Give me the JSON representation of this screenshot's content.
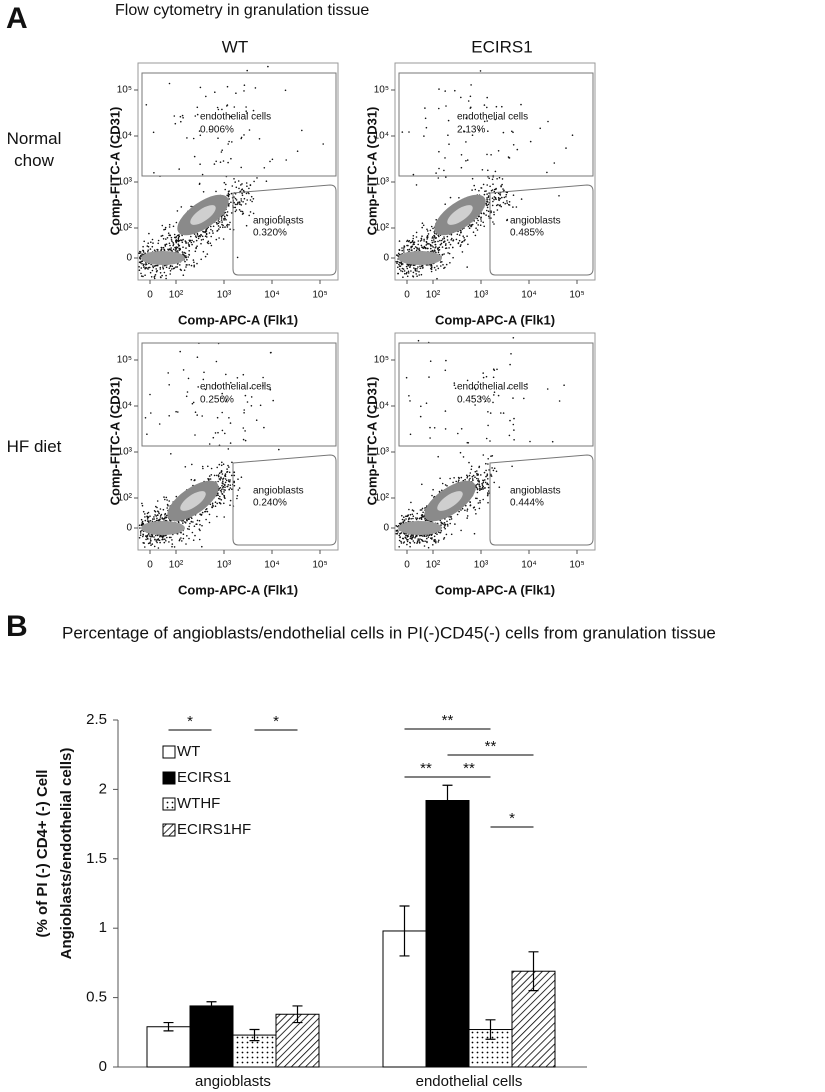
{
  "panel_a": {
    "label": "A",
    "title": "Flow cytometry in granulation tissue",
    "columns": [
      "WT",
      "ECIRS1"
    ],
    "rows": [
      "Normal chow",
      "HF diet"
    ],
    "x_label": "Comp-APC-A (Flk1)",
    "y_label": "Comp-FITC-A (CD31)",
    "xticks": [
      0,
      {
        "value": 100,
        "label": "10²"
      },
      {
        "value": 1000,
        "label": "10³"
      },
      {
        "value": 10000,
        "label": "10⁴"
      },
      {
        "value": 100000,
        "label": "10⁵"
      }
    ],
    "yticks": [
      0,
      {
        "value": 100,
        "label": "10²"
      },
      {
        "value": 1000,
        "label": "10³"
      },
      {
        "value": 10000,
        "label": "10⁴"
      },
      {
        "value": 100000,
        "label": "10⁵"
      }
    ],
    "plots": [
      {
        "gates": [
          {
            "name": "endothelial cells",
            "value": "0.906%"
          },
          {
            "name": "angioblasts",
            "value": "0.320%"
          }
        ]
      },
      {
        "gates": [
          {
            "name": "endothelial cells",
            "value": "2.13%"
          },
          {
            "name": "angioblasts",
            "value": "0.485%"
          }
        ]
      },
      {
        "gates": [
          {
            "name": "endothelial cells",
            "value": "0.250%"
          },
          {
            "name": "angioblasts",
            "value": "0.240%"
          }
        ]
      },
      {
        "gates": [
          {
            "name": "endothelial cells",
            "value": "0.453%"
          },
          {
            "name": "angioblasts",
            "value": "0.444%"
          }
        ]
      }
    ]
  },
  "chart_data": {
    "type": "bar",
    "label": "B",
    "title": "Percentage of angioblasts/endothelial cells in PI(-)CD45(-) cells from granulation tissue",
    "y_label": [
      "(% of PI (-) CD4+ (-) Cell",
      "Angioblasts/endothelial cells)"
    ],
    "categories": [
      "angioblasts",
      "endothelial cells"
    ],
    "series": [
      {
        "name": "WT",
        "color": "#ffffff",
        "values": [
          0.29,
          0.98
        ],
        "errors": [
          0.03,
          0.18
        ]
      },
      {
        "name": "ECIRS1",
        "color": "#000000",
        "values": [
          0.44,
          1.92
        ],
        "errors": [
          0.03,
          0.11
        ]
      },
      {
        "name": "WTHF",
        "color": "#ffffff",
        "pattern": "dots",
        "values": [
          0.23,
          0.27
        ],
        "errors": [
          0.04,
          0.07
        ]
      },
      {
        "name": "ECIRS1HF",
        "color": "#ffffff",
        "pattern": "hatch",
        "values": [
          0.38,
          0.69
        ],
        "errors": [
          0.06,
          0.14
        ]
      }
    ],
    "ylim": [
      0,
      2.5
    ],
    "yticks": [
      0,
      0.5,
      1,
      1.5,
      2,
      2.5
    ],
    "annotations": [
      "*",
      "*",
      "**",
      "**",
      "**",
      "**",
      "*"
    ]
  }
}
